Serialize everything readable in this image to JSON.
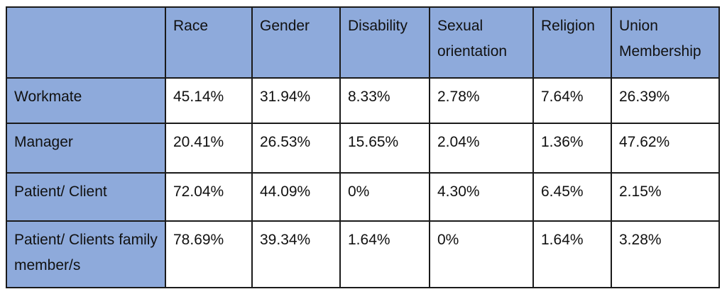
{
  "table": {
    "columns": [
      "Race",
      "Gender",
      "Disability",
      "Sexual orientation",
      "Religion",
      "Union Membership"
    ],
    "rows": [
      {
        "label": "Workmate",
        "values": [
          "45.14%",
          "31.94%",
          "8.33%",
          "2.78%",
          "7.64%",
          "26.39%"
        ]
      },
      {
        "label": "Manager",
        "values": [
          "20.41%",
          "26.53%",
          "15.65%",
          "2.04%",
          "1.36%",
          "47.62%"
        ]
      },
      {
        "label": "Patient/ Client",
        "values": [
          "72.04%",
          "44.09%",
          "0%",
          "4.30%",
          "6.45%",
          "2.15%"
        ]
      },
      {
        "label": "Patient/ Clients family member/s",
        "values": [
          "78.69%",
          "39.34%",
          "1.64%",
          "0%",
          "1.64%",
          "3.28%"
        ]
      }
    ]
  },
  "colors": {
    "header_fill": "#8eaadb",
    "border": "#1a1a1a"
  }
}
